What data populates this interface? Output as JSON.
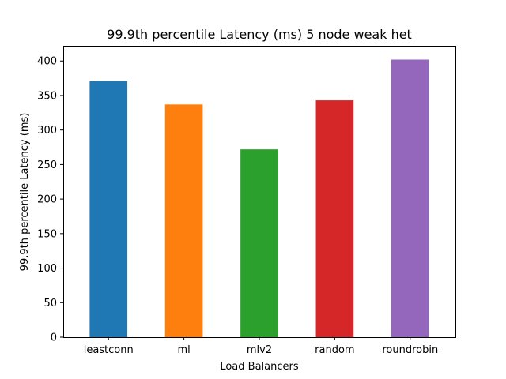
{
  "chart_data": {
    "type": "bar",
    "title": "99.9th percentile Latency (ms) 5 node weak het",
    "xlabel": "Load Balancers",
    "ylabel": "99.9th percentile Latency (ms)",
    "categories": [
      "leastconn",
      "ml",
      "mlv2",
      "random",
      "roundrobin"
    ],
    "values": [
      371,
      337,
      272,
      343,
      402
    ],
    "colors": [
      "#1f77b4",
      "#ff7f0e",
      "#2ca02c",
      "#d62728",
      "#9467bd"
    ],
    "ylim": [
      0,
      422
    ],
    "yticks": [
      0,
      50,
      100,
      150,
      200,
      250,
      300,
      350,
      400
    ],
    "ytick_labels": [
      "0",
      "50",
      "100",
      "150",
      "200",
      "250",
      "300",
      "350",
      "400"
    ],
    "grid": false,
    "legend": "none"
  }
}
